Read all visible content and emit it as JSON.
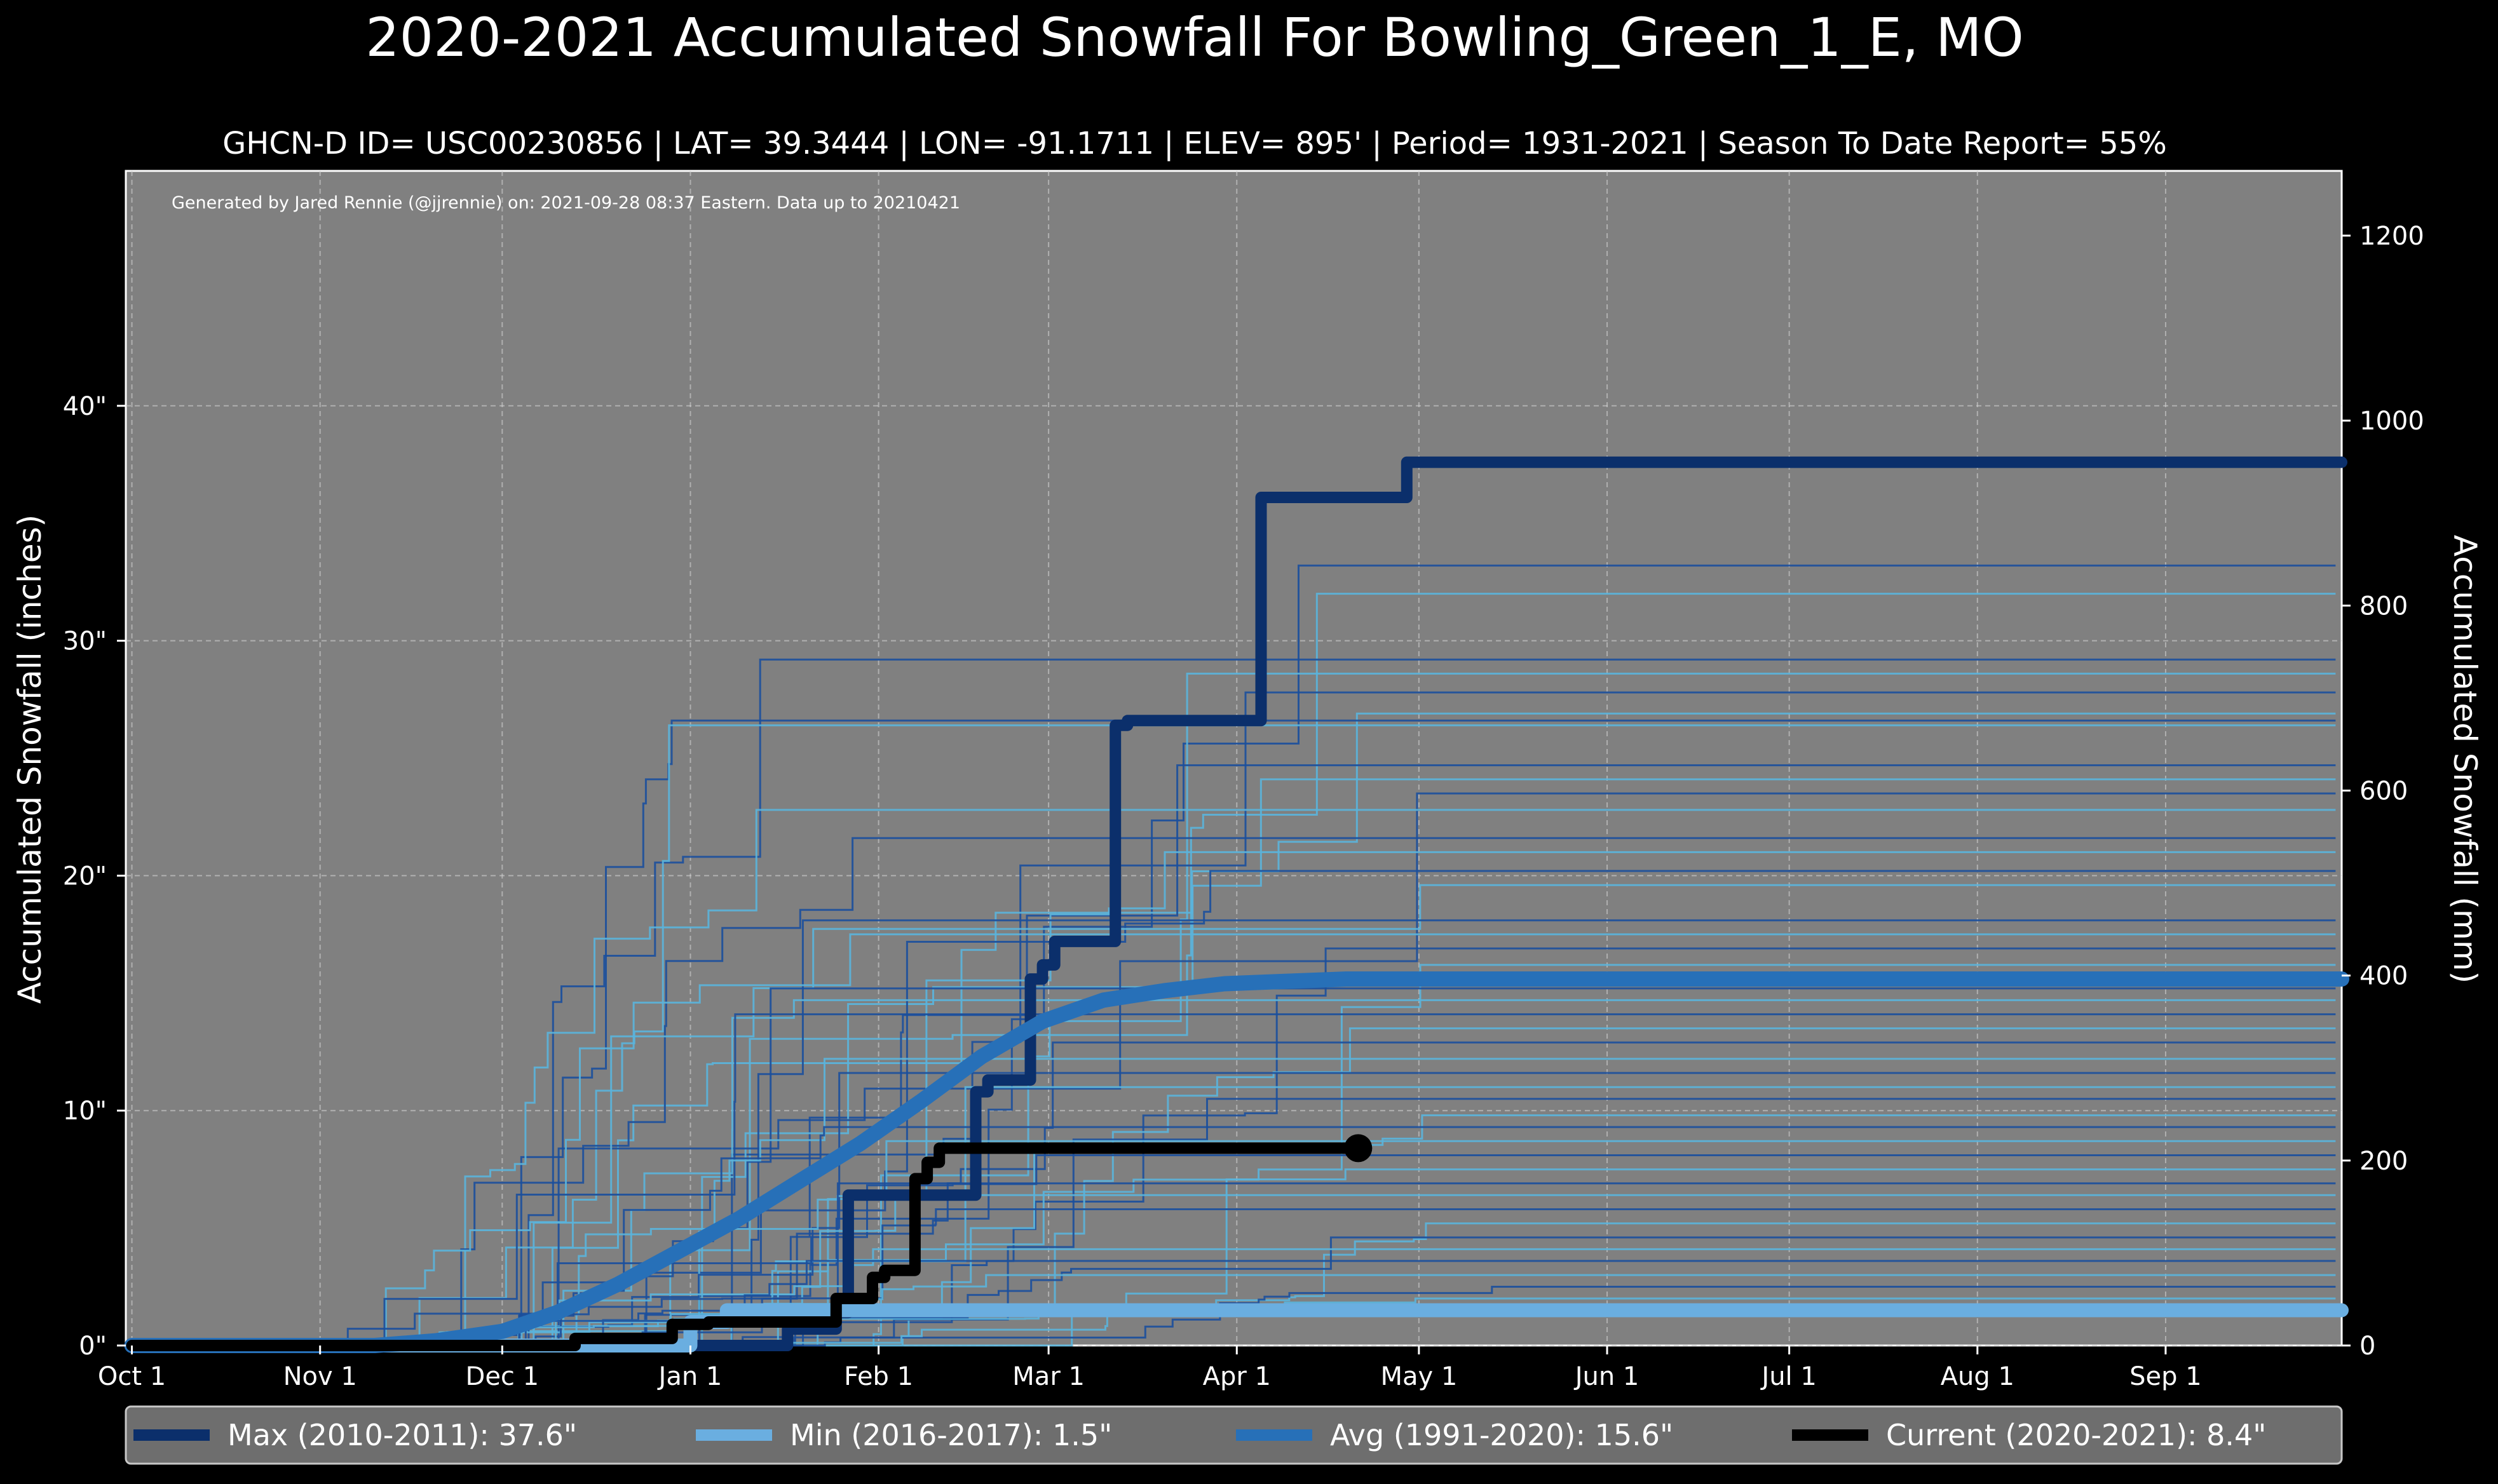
{
  "chart_data": {
    "type": "line",
    "title": "2020-2021 Accumulated Snowfall For Bowling_Green_1_E, MO",
    "subtitle": "GHCN-D ID= USC00230856 | LAT= 39.3444 | LON= -91.1711 | ELEV= 895' | Period= 1931-2021 | Season To Date Report= 55%",
    "credit": "Generated by Jared Rennie (@jjrennie) on: 2021-09-28 08:37 Eastern. Data up to 20210421",
    "ylabel": "Accumulated Snowfall (inches)",
    "ylabel_right": "Accumulated Snowfall (mm)",
    "xlim": [
      -1,
      364
    ],
    "ylim": [
      0,
      50
    ],
    "ylim_right_mm": [
      0,
      1270
    ],
    "x_ticks": [
      {
        "day": 0,
        "label": "Oct 1"
      },
      {
        "day": 31,
        "label": "Nov 1"
      },
      {
        "day": 61,
        "label": "Dec 1"
      },
      {
        "day": 92,
        "label": "Jan 1"
      },
      {
        "day": 123,
        "label": "Feb 1"
      },
      {
        "day": 151,
        "label": "Mar 1"
      },
      {
        "day": 182,
        "label": "Apr 1"
      },
      {
        "day": 212,
        "label": "May 1"
      },
      {
        "day": 243,
        "label": "Jun 1"
      },
      {
        "day": 273,
        "label": "Jul 1"
      },
      {
        "day": 304,
        "label": "Aug 1"
      },
      {
        "day": 335,
        "label": "Sep 1"
      }
    ],
    "y_ticks": [
      {
        "value": 0,
        "label": "0\""
      },
      {
        "value": 10,
        "label": "10\""
      },
      {
        "value": 20,
        "label": "20\""
      },
      {
        "value": 30,
        "label": "30\""
      },
      {
        "value": 40,
        "label": "40\""
      }
    ],
    "y_ticks_right": [
      {
        "value": 0,
        "label": "0"
      },
      {
        "value": 200,
        "label": "200"
      },
      {
        "value": 400,
        "label": "400"
      },
      {
        "value": 600,
        "label": "600"
      },
      {
        "value": 800,
        "label": "800"
      },
      {
        "value": 1000,
        "label": "1000"
      },
      {
        "value": 1200,
        "label": "1200"
      }
    ],
    "grid": true,
    "colors": {
      "background": "#000000",
      "plot": "#808080",
      "max": "#0b2f6b",
      "min": "#6aaee0",
      "avg": "#2770b8",
      "current": "#000000",
      "history_dark": "#1b4f9c",
      "history_light": "#5ab4dc",
      "legend_bg": "#6e6e6e"
    },
    "history_final_totals": [
      33.2,
      32.0,
      29.2,
      28.6,
      27.8,
      26.9,
      26.6,
      26.4,
      24.7,
      24.1,
      23.5,
      22.8,
      21.6,
      21.0,
      20.2,
      19.6,
      18.1,
      17.5,
      16.9,
      16.2,
      15.2,
      14.7,
      14.1,
      13.5,
      12.9,
      12.2,
      11.6,
      11.0,
      10.5,
      9.8,
      9.3,
      8.7,
      8.1,
      7.5,
      6.9,
      6.4,
      5.8,
      5.2,
      4.6,
      4.1,
      3.6,
      3.0,
      2.5,
      2.0
    ],
    "series": [
      {
        "name": "Max (2010-2011)",
        "total": "37.6\"",
        "color": "#0b2f6b",
        "points": [
          [
            0,
            0
          ],
          [
            108,
            0
          ],
          [
            108,
            0.7
          ],
          [
            116,
            0.7
          ],
          [
            116,
            1.4
          ],
          [
            118,
            1.4
          ],
          [
            118,
            6.4
          ],
          [
            139,
            6.4
          ],
          [
            139,
            10.8
          ],
          [
            141,
            10.8
          ],
          [
            141,
            11.3
          ],
          [
            148,
            11.3
          ],
          [
            148,
            15.6
          ],
          [
            150,
            15.6
          ],
          [
            150,
            16.2
          ],
          [
            152,
            16.2
          ],
          [
            152,
            17.2
          ],
          [
            162,
            17.2
          ],
          [
            162,
            26.4
          ],
          [
            164,
            26.4
          ],
          [
            164,
            26.6
          ],
          [
            186,
            26.6
          ],
          [
            186,
            36.1
          ],
          [
            210,
            36.1
          ],
          [
            210,
            37.6
          ],
          [
            364,
            37.6
          ]
        ]
      },
      {
        "name": "Min (2016-2017)",
        "total": "1.5\"",
        "color": "#6aaee0",
        "points": [
          [
            0,
            0
          ],
          [
            92,
            0
          ],
          [
            92,
            1.0
          ],
          [
            98,
            1.0
          ],
          [
            98,
            1.5
          ],
          [
            364,
            1.5
          ]
        ]
      },
      {
        "name": "Avg (1991-2020)",
        "total": "15.6\"",
        "color": "#2770b8",
        "points": [
          [
            0,
            0
          ],
          [
            40,
            0
          ],
          [
            50,
            0.2
          ],
          [
            61,
            0.6
          ],
          [
            70,
            1.4
          ],
          [
            80,
            2.6
          ],
          [
            90,
            4.0
          ],
          [
            100,
            5.4
          ],
          [
            110,
            7.0
          ],
          [
            120,
            8.6
          ],
          [
            130,
            10.4
          ],
          [
            140,
            12.3
          ],
          [
            150,
            13.8
          ],
          [
            160,
            14.7
          ],
          [
            170,
            15.1
          ],
          [
            180,
            15.4
          ],
          [
            190,
            15.5
          ],
          [
            200,
            15.6
          ],
          [
            364,
            15.6
          ]
        ]
      },
      {
        "name": "Current (2020-2021)",
        "total": "8.4\"",
        "color": "#000000",
        "points": [
          [
            0,
            0
          ],
          [
            73,
            0
          ],
          [
            73,
            0.3
          ],
          [
            89,
            0.3
          ],
          [
            89,
            0.9
          ],
          [
            95,
            0.9
          ],
          [
            95,
            1.0
          ],
          [
            116,
            1.0
          ],
          [
            116,
            2.0
          ],
          [
            122,
            2.0
          ],
          [
            122,
            2.9
          ],
          [
            124,
            2.9
          ],
          [
            124,
            3.2
          ],
          [
            129,
            3.2
          ],
          [
            129,
            7.1
          ],
          [
            131,
            7.1
          ],
          [
            131,
            7.8
          ],
          [
            133,
            7.8
          ],
          [
            133,
            8.4
          ],
          [
            202,
            8.4
          ]
        ]
      }
    ]
  }
}
